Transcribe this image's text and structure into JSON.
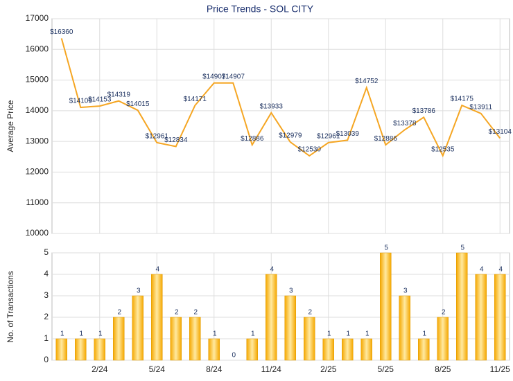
{
  "chart_data": [
    {
      "type": "line",
      "title": "Price Trends - SOL CITY",
      "y_label": "Average Price",
      "color": "#f5a623",
      "values": [
        16360,
        14109,
        14153,
        14319,
        14015,
        12961,
        12834,
        14171,
        14907,
        14907,
        12886,
        13933,
        12979,
        12530,
        12961,
        13039,
        14752,
        12886,
        13378,
        13786,
        12535,
        14175,
        13911,
        13104
      ],
      "value_labels": [
        "$16360",
        "$14109",
        "$14153",
        "$14319",
        "$14015",
        "$12961",
        "$12834",
        "$14171",
        "$14907",
        "$14907",
        "$12886",
        "$13933",
        "$12979",
        "$12530",
        "$12961",
        "$13039",
        "$14752",
        "$12886",
        "$13378",
        "$13786",
        "$12535",
        "$14175",
        "$13911",
        "$13104"
      ],
      "ylim": [
        10000,
        17000
      ],
      "yticks": [
        10000,
        11000,
        12000,
        13000,
        14000,
        15000,
        16000,
        17000
      ],
      "grid": true
    },
    {
      "type": "bar",
      "y_label": "No. of Transactions",
      "color": "#f5a800",
      "categories": [
        null,
        null,
        "2/24",
        null,
        null,
        "5/24",
        null,
        null,
        "8/24",
        null,
        null,
        "11/24",
        null,
        null,
        "2/25",
        null,
        null,
        "5/25",
        null,
        null,
        "8/25",
        null,
        null,
        "11/25"
      ],
      "values": [
        1,
        1,
        1,
        2,
        3,
        4,
        2,
        2,
        1,
        0,
        1,
        4,
        3,
        2,
        1,
        1,
        1,
        5,
        3,
        1,
        2,
        5,
        4,
        4
      ],
      "ylim": [
        0,
        5
      ],
      "yticks": [
        0,
        1,
        2,
        3,
        4,
        5
      ],
      "grid": true
    }
  ]
}
